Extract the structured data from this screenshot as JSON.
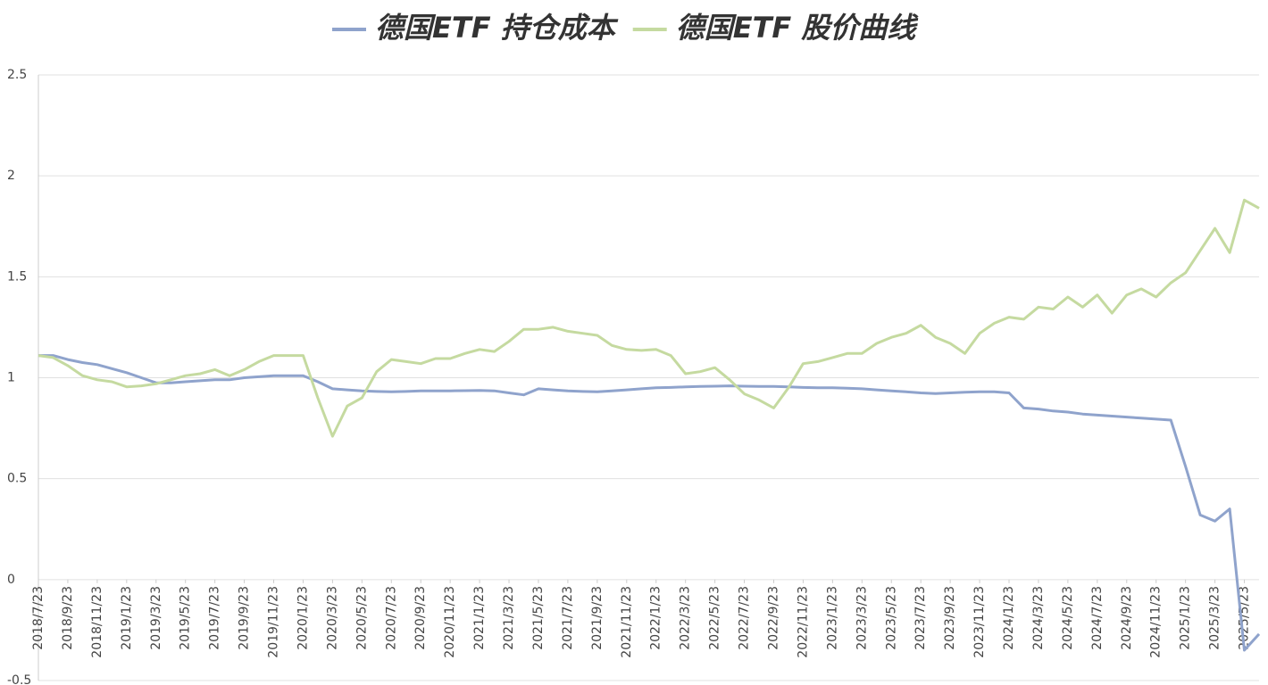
{
  "chart_data": {
    "type": "line",
    "categories": [
      "2018/7/23",
      null,
      "2018/9/23",
      null,
      "2018/11/23",
      null,
      "2019/1/23",
      null,
      "2019/3/23",
      null,
      "2019/5/23",
      null,
      "2019/7/23",
      null,
      "2019/9/23",
      null,
      "2019/11/23",
      null,
      "2020/1/23",
      null,
      "2020/3/23",
      null,
      "2020/5/23",
      null,
      "2020/7/23",
      null,
      "2020/9/23",
      null,
      "2020/11/23",
      null,
      "2021/1/23",
      null,
      "2021/3/23",
      null,
      "2021/5/23",
      null,
      "2021/7/23",
      null,
      "2021/9/23",
      null,
      "2021/11/23",
      null,
      "2022/1/23",
      null,
      "2022/3/23",
      null,
      "2022/5/23",
      null,
      "2022/7/23",
      null,
      "2022/9/23",
      null,
      "2022/11/23",
      null,
      "2023/1/23",
      null,
      "2023/3/23",
      null,
      "2023/5/23",
      null,
      "2023/7/23",
      null,
      "2023/9/23",
      null,
      "2023/11/23",
      null,
      "2024/1/23",
      null,
      "2024/3/23",
      null,
      "2024/5/23",
      null,
      "2024/7/23",
      null,
      "2024/9/23",
      null,
      "2024/11/23",
      null,
      "2025/1/23",
      null,
      "2025/3/23",
      null,
      "2025/5/23",
      null
    ],
    "series": [
      {
        "name": "德国ETF 持仓成本",
        "color": "#8fa3cc",
        "values": [
          1.11,
          1.11,
          1.09,
          1.075,
          1.065,
          1.045,
          1.025,
          1.0,
          0.975,
          0.975,
          0.98,
          0.985,
          0.99,
          0.99,
          1.0,
          1.005,
          1.01,
          1.01,
          1.01,
          0.98,
          0.945,
          0.94,
          0.935,
          0.932,
          0.93,
          0.932,
          0.935,
          0.935,
          0.935,
          0.936,
          0.937,
          0.935,
          0.925,
          0.915,
          0.945,
          0.94,
          0.935,
          0.932,
          0.93,
          0.935,
          0.94,
          0.945,
          0.95,
          0.952,
          0.955,
          0.957,
          0.958,
          0.96,
          0.958,
          0.957,
          0.957,
          0.955,
          0.952,
          0.95,
          0.95,
          0.948,
          0.945,
          0.94,
          0.935,
          0.93,
          0.925,
          0.922,
          0.925,
          0.928,
          0.93,
          0.93,
          0.925,
          0.85,
          0.845,
          0.835,
          0.83,
          0.82,
          0.815,
          0.81,
          0.805,
          0.8,
          0.795,
          0.79,
          0.56,
          0.32,
          0.29,
          0.35,
          -0.35,
          -0.27
        ]
      },
      {
        "name": "德国ETF 股价曲线",
        "color": "#c5daa0",
        "values": [
          1.11,
          1.1,
          1.06,
          1.01,
          0.99,
          0.98,
          0.955,
          0.96,
          0.97,
          0.99,
          1.01,
          1.02,
          1.04,
          1.01,
          1.04,
          1.08,
          1.11,
          1.11,
          1.11,
          0.9,
          0.71,
          0.86,
          0.9,
          1.03,
          1.09,
          1.08,
          1.07,
          1.095,
          1.095,
          1.12,
          1.14,
          1.13,
          1.18,
          1.24,
          1.24,
          1.25,
          1.23,
          1.22,
          1.21,
          1.16,
          1.14,
          1.135,
          1.14,
          1.11,
          1.02,
          1.03,
          1.05,
          0.99,
          0.92,
          0.89,
          0.85,
          0.95,
          1.07,
          1.08,
          1.1,
          1.12,
          1.12,
          1.17,
          1.2,
          1.22,
          1.26,
          1.2,
          1.17,
          1.12,
          1.22,
          1.27,
          1.3,
          1.29,
          1.35,
          1.34,
          1.4,
          1.35,
          1.41,
          1.32,
          1.41,
          1.44,
          1.4,
          1.47,
          1.52,
          1.63,
          1.74,
          1.62,
          1.88,
          1.84
        ]
      }
    ],
    "ylim": [
      -0.5,
      2.5
    ],
    "yticks": [
      -0.5,
      0,
      0.5,
      1,
      1.5,
      2,
      2.5
    ],
    "grid": true,
    "legend": "top"
  }
}
